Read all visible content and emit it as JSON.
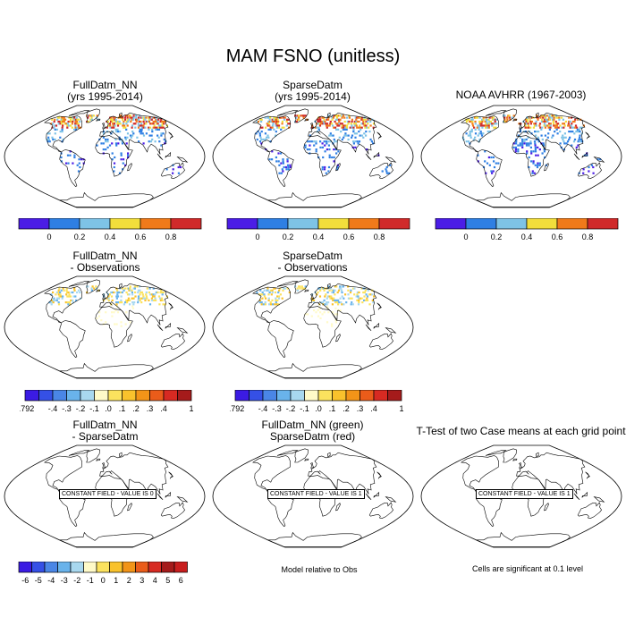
{
  "main_title": "MAM FSNO (unitless)",
  "panels": [
    {
      "title1": "FullDatm_NN",
      "title2": "(yrs 1995-2014)"
    },
    {
      "title1": "SparseDatm",
      "title2": "(yrs 1995-2014)"
    },
    {
      "title1": "NOAA AVHRR (1967-2003)",
      "title2": ""
    },
    {
      "title1": "FullDatm_NN",
      "title2": "- Observations"
    },
    {
      "title1": "SparseDatm",
      "title2": "- Observations"
    },
    {
      "title1": "FullDatm_NN",
      "title2": "- SparseDatm"
    },
    {
      "title1": "FullDatm_NN (green)",
      "title2": "SparseDatm (red)"
    },
    {
      "title1": "T-Test of two Case means at each grid point",
      "title2": ""
    }
  ],
  "constant_labels": [
    "CONSTANT FIELD - VALUE IS 0",
    "CONSTANT FIELD - VALUE IS 1",
    "CONSTANT FIELD - VALUE IS 1"
  ],
  "notes": {
    "model_relative": "Model relative to Obs",
    "cells_significant": "Cells are significant at 0.1 level"
  },
  "colorbars": {
    "abs": {
      "colors": [
        "#4b1de6",
        "#2f7fe3",
        "#7ec3e6",
        "#f2de3b",
        "#f07a1a",
        "#d02a2a"
      ],
      "tick_labels": [
        "0",
        "0.2",
        "0.4",
        "0.6",
        "0.8"
      ]
    },
    "diff": {
      "colors": [
        "#3b1be3",
        "#3550e6",
        "#4a86e6",
        "#69b3eb",
        "#a8d8ef",
        "#fffac8",
        "#fbe25e",
        "#f9c22c",
        "#f29418",
        "#ea5c1a",
        "#d72a22",
        "#a51b1b"
      ],
      "tick_labels": [
        "-.792",
        "-.4",
        "-.3",
        "-.2",
        "-.1",
        ".0",
        ".1",
        ".2",
        ".3",
        ".4",
        "1"
      ]
    },
    "ttest": {
      "colors": [
        "#3b1be3",
        "#3550e6",
        "#4a86e6",
        "#69b3eb",
        "#a8d8ef",
        "#fffac8",
        "#fbe25e",
        "#f9c22c",
        "#f29418",
        "#ea5c1a",
        "#d72a22",
        "#a51b1b",
        "#c81e1e"
      ],
      "tick_labels": [
        "-6",
        "-5",
        "-4",
        "-3",
        "-2",
        "-1",
        "0",
        "1",
        "2",
        "3",
        "4",
        "5",
        "6"
      ]
    }
  },
  "chart_data": [
    {
      "type": "heatmap",
      "title": "FullDatm_NN (yrs 1995-2014)",
      "colorbar": "abs",
      "ticks": [
        0,
        0.2,
        0.4,
        0.6,
        0.8
      ]
    },
    {
      "type": "heatmap",
      "title": "SparseDatm (yrs 1995-2014)",
      "colorbar": "abs",
      "ticks": [
        0,
        0.2,
        0.4,
        0.6,
        0.8
      ]
    },
    {
      "type": "heatmap",
      "title": "NOAA AVHRR (1967-2003)",
      "colorbar": "abs",
      "ticks": [
        0,
        0.2,
        0.4,
        0.6,
        0.8
      ]
    },
    {
      "type": "heatmap",
      "title": "FullDatm_NN - Observations",
      "colorbar": "diff",
      "ticks": [
        -0.792,
        -0.4,
        -0.3,
        -0.2,
        -0.1,
        0,
        0.1,
        0.2,
        0.3,
        0.4,
        1
      ]
    },
    {
      "type": "heatmap",
      "title": "SparseDatm - Observations",
      "colorbar": "diff",
      "ticks": [
        -0.792,
        -0.4,
        -0.3,
        -0.2,
        -0.1,
        0,
        0.1,
        0.2,
        0.3,
        0.4,
        1
      ]
    },
    {
      "type": "heatmap",
      "title": "FullDatm_NN - SparseDatm",
      "constant_value": 0
    },
    {
      "type": "heatmap",
      "title": "FullDatm_NN (green) SparseDatm (red)",
      "constant_value": 1
    },
    {
      "type": "heatmap",
      "title": "T-Test of two Case means at each grid point",
      "constant_value": 1,
      "colorbar": "ttest",
      "ticks": [
        -6,
        -5,
        -4,
        -3,
        -2,
        -1,
        0,
        1,
        2,
        3,
        4,
        5,
        6
      ]
    }
  ]
}
